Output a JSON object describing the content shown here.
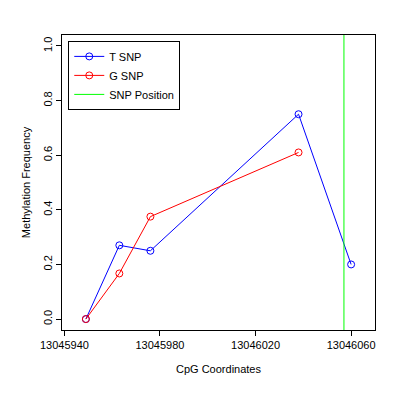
{
  "chart_data": {
    "type": "line",
    "x_label": "CpG Coordinates",
    "y_label": "Methylation Frequency",
    "series": [
      {
        "name": "T SNP",
        "color": "#0000ff",
        "marker": "circle-open",
        "line_style": "solid",
        "x": [
          13045949,
          13045963,
          13045976,
          13046038,
          13046060
        ],
        "values": [
          0.0,
          0.27,
          0.25,
          0.75,
          0.2
        ]
      },
      {
        "name": "G SNP",
        "color": "#ff0000",
        "marker": "circle-open",
        "line_style": "solid",
        "x": [
          13045949,
          13045963,
          13045976,
          13046038
        ],
        "values": [
          0.0,
          0.167,
          0.375,
          0.61
        ]
      }
    ],
    "snp_position": {
      "name": "SNP Position",
      "color": "#00ff00",
      "x": 13046057
    },
    "xlim": [
      13045939,
      13046070
    ],
    "xticks": [
      13045940,
      13045980,
      13046020,
      13046060
    ],
    "ylim": [
      -0.04,
      1.04
    ],
    "yticks": [
      {
        "value": 0,
        "label": "0.0"
      },
      {
        "value": 0.2,
        "label": "0.2"
      },
      {
        "value": 0.4,
        "label": "0.4"
      },
      {
        "value": 0.6,
        "label": "0.6"
      },
      {
        "value": 0.8,
        "label": "0.8"
      },
      {
        "value": 1,
        "label": "1.0"
      }
    ],
    "grid": false,
    "legend": "upper left"
  }
}
